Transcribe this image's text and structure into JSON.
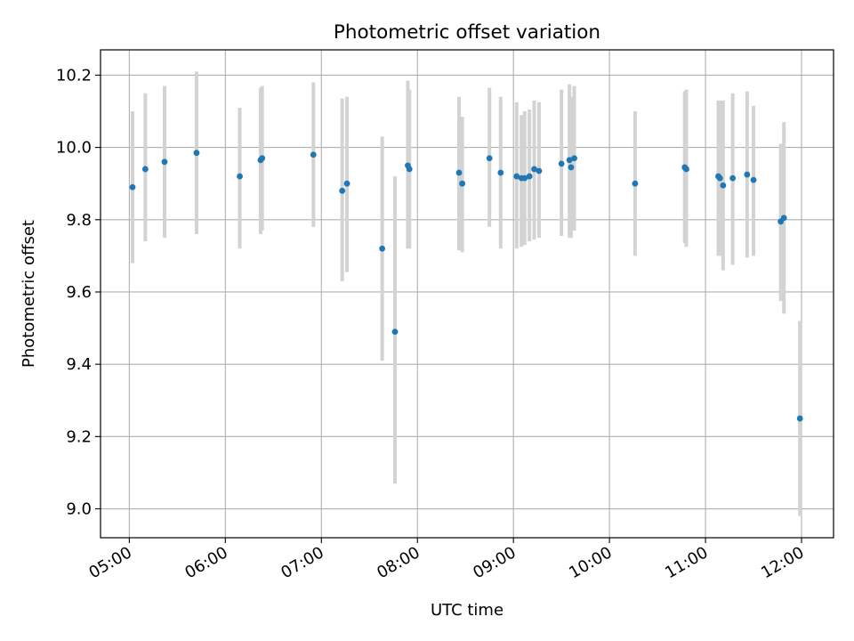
{
  "chart_data": {
    "type": "scatter",
    "title": "Photometric offset variation",
    "xlabel": "UTC time",
    "ylabel": "Photometric offset",
    "x_unit": "hours since 00:00 UTC",
    "xlim": [
      "04:42",
      "12:20"
    ],
    "ylim": [
      8.92,
      10.27
    ],
    "x_ticks": [
      {
        "value": "05:00",
        "label": "05:00"
      },
      {
        "value": "06:00",
        "label": "06:00"
      },
      {
        "value": "07:00",
        "label": "07:00"
      },
      {
        "value": "08:00",
        "label": "08:00"
      },
      {
        "value": "09:00",
        "label": "09:00"
      },
      {
        "value": "10:00",
        "label": "10:00"
      },
      {
        "value": "11:00",
        "label": "11:00"
      },
      {
        "value": "12:00",
        "label": "12:00"
      }
    ],
    "y_ticks": [
      {
        "value": 9.0,
        "label": "9.0"
      },
      {
        "value": 9.2,
        "label": "9.2"
      },
      {
        "value": 9.4,
        "label": "9.4"
      },
      {
        "value": 9.6,
        "label": "9.6"
      },
      {
        "value": 9.8,
        "label": "9.8"
      },
      {
        "value": 10.0,
        "label": "10.0"
      },
      {
        "value": 10.2,
        "label": "10.2"
      }
    ],
    "grid": true,
    "colors": {
      "marker": "#1f77b4",
      "error_bar": "#d3d3d3",
      "grid": "#b0b0b0"
    },
    "series": [
      {
        "points": [
          {
            "x": "05:02",
            "y": 9.89,
            "lo": 9.68,
            "hi": 10.1
          },
          {
            "x": "05:10",
            "y": 9.94,
            "lo": 9.74,
            "hi": 10.15
          },
          {
            "x": "05:22",
            "y": 9.96,
            "lo": 9.75,
            "hi": 10.17
          },
          {
            "x": "05:42",
            "y": 9.985,
            "lo": 9.76,
            "hi": 10.21
          },
          {
            "x": "06:09",
            "y": 9.92,
            "lo": 9.72,
            "hi": 10.11
          },
          {
            "x": "06:22",
            "y": 9.965,
            "lo": 9.76,
            "hi": 10.165
          },
          {
            "x": "06:23",
            "y": 9.97,
            "lo": 9.77,
            "hi": 10.17
          },
          {
            "x": "06:55",
            "y": 9.98,
            "lo": 9.78,
            "hi": 10.18
          },
          {
            "x": "07:13",
            "y": 9.88,
            "lo": 9.63,
            "hi": 10.135
          },
          {
            "x": "07:16",
            "y": 9.9,
            "lo": 9.655,
            "hi": 10.14
          },
          {
            "x": "07:38",
            "y": 9.72,
            "lo": 9.41,
            "hi": 10.03
          },
          {
            "x": "07:46",
            "y": 9.49,
            "lo": 9.07,
            "hi": 9.92
          },
          {
            "x": "07:54",
            "y": 9.95,
            "lo": 9.72,
            "hi": 10.185
          },
          {
            "x": "07:55",
            "y": 9.94,
            "lo": 9.72,
            "hi": 10.16
          },
          {
            "x": "08:26",
            "y": 9.93,
            "lo": 9.715,
            "hi": 10.14
          },
          {
            "x": "08:28",
            "y": 9.9,
            "lo": 9.71,
            "hi": 10.085
          },
          {
            "x": "08:45",
            "y": 9.97,
            "lo": 9.78,
            "hi": 10.165
          },
          {
            "x": "08:52",
            "y": 9.93,
            "lo": 9.72,
            "hi": 10.14
          },
          {
            "x": "09:02",
            "y": 9.92,
            "lo": 9.72,
            "hi": 10.125
          },
          {
            "x": "09:05",
            "y": 9.915,
            "lo": 9.725,
            "hi": 10.09
          },
          {
            "x": "09:07",
            "y": 9.915,
            "lo": 9.73,
            "hi": 10.1
          },
          {
            "x": "09:10",
            "y": 9.92,
            "lo": 9.74,
            "hi": 10.105
          },
          {
            "x": "09:13",
            "y": 9.94,
            "lo": 9.745,
            "hi": 10.13
          },
          {
            "x": "09:16",
            "y": 9.935,
            "lo": 9.75,
            "hi": 10.125
          },
          {
            "x": "09:30",
            "y": 9.955,
            "lo": 9.755,
            "hi": 10.16
          },
          {
            "x": "09:35",
            "y": 9.965,
            "lo": 9.75,
            "hi": 10.175
          },
          {
            "x": "09:36",
            "y": 9.945,
            "lo": 9.75,
            "hi": 10.14
          },
          {
            "x": "09:38",
            "y": 9.97,
            "lo": 9.77,
            "hi": 10.17
          },
          {
            "x": "10:16",
            "y": 9.9,
            "lo": 9.7,
            "hi": 10.1
          },
          {
            "x": "10:47",
            "y": 9.945,
            "lo": 9.735,
            "hi": 10.155
          },
          {
            "x": "10:48",
            "y": 9.94,
            "lo": 9.725,
            "hi": 10.16
          },
          {
            "x": "11:08",
            "y": 9.92,
            "lo": 9.7,
            "hi": 10.13
          },
          {
            "x": "11:09",
            "y": 9.915,
            "lo": 9.7,
            "hi": 10.13
          },
          {
            "x": "11:11",
            "y": 9.895,
            "lo": 9.66,
            "hi": 10.13
          },
          {
            "x": "11:17",
            "y": 9.915,
            "lo": 9.675,
            "hi": 10.15
          },
          {
            "x": "11:26",
            "y": 9.925,
            "lo": 9.695,
            "hi": 10.155
          },
          {
            "x": "11:30",
            "y": 9.91,
            "lo": 9.7,
            "hi": 10.115
          },
          {
            "x": "11:47",
            "y": 9.795,
            "lo": 9.575,
            "hi": 10.01
          },
          {
            "x": "11:49",
            "y": 9.805,
            "lo": 9.54,
            "hi": 10.07
          },
          {
            "x": "11:59",
            "y": 9.25,
            "lo": 8.98,
            "hi": 9.52
          }
        ]
      }
    ]
  }
}
